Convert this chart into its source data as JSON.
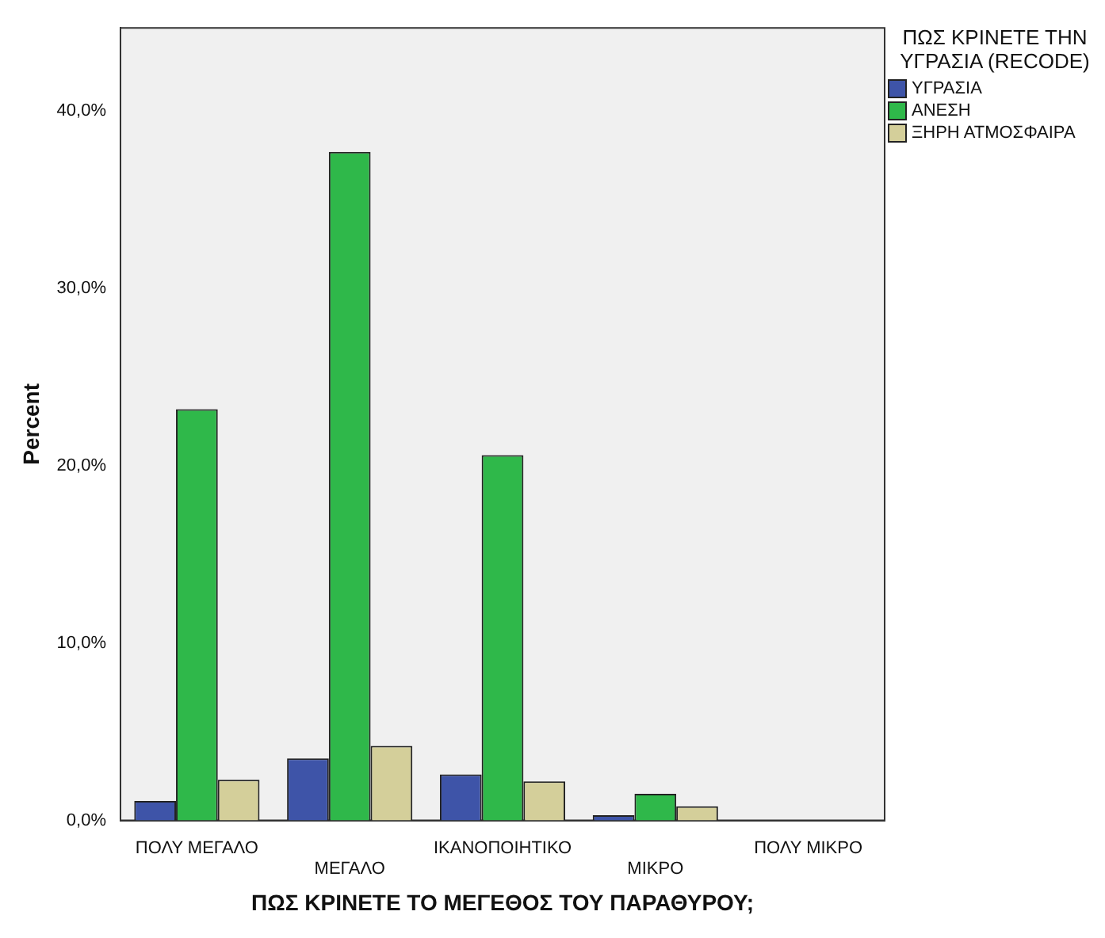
{
  "chart_data": {
    "type": "bar",
    "xlabel": "ΠΩΣ ΚΡΙΝΕΤΕ ΤΟ ΜΕΓΕΘΟΣ ΤΟΥ ΠΑΡΑΘΥΡΟΥ;",
    "ylabel": "Percent",
    "legend_title": "ΠΩΣ ΚΡΙΝΕΤΕ ΤΗΝ ΥΓΡΑΣΙΑ (RECODE)",
    "categories": [
      "ΠΟΛΥ ΜΕΓΑΛΟ",
      "ΜΕΓΑΛΟ",
      "ΙΚΑΝΟΠΟΙΗΤΙΚΟ",
      "ΜΙΚΡΟ",
      "ΠΟΛΥ ΜΙΚΡΟ"
    ],
    "series": [
      {
        "name": "ΥΓΡΑΣΙΑ",
        "color": "#3e54a8",
        "values": [
          1.1,
          3.5,
          2.6,
          0.3,
          0
        ]
      },
      {
        "name": "ΑΝΕΣΗ",
        "color": "#2fb84a",
        "values": [
          23.2,
          37.7,
          20.6,
          1.5,
          0
        ]
      },
      {
        "name": "ΞΗΡΗ ΑΤΜΟΣΦΑΙΡΑ",
        "color": "#d4cf9a",
        "values": [
          2.3,
          4.2,
          2.2,
          0.8,
          0
        ]
      }
    ],
    "ylim": [
      0,
      44.7
    ],
    "yticks": [
      {
        "value": 0,
        "label": "0,0%"
      },
      {
        "value": 10,
        "label": "10,0%"
      },
      {
        "value": 20,
        "label": "20,0%"
      },
      {
        "value": 30,
        "label": "30,0%"
      },
      {
        "value": 40,
        "label": "40,0%"
      }
    ],
    "grid": false,
    "legend": "right"
  }
}
